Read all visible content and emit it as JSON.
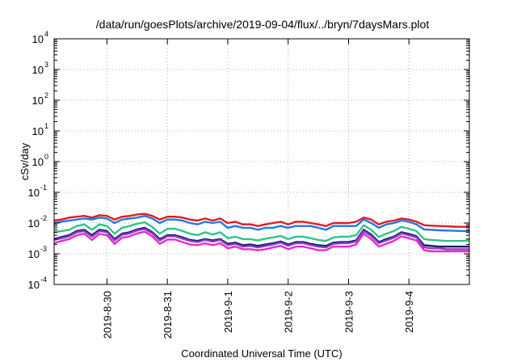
{
  "chart_data": {
    "type": "line",
    "title": "/data/run/goesPlots/archive/2019-09-04/flux/../bryn/7daysMars.plot",
    "xlabel": "Coordinated Universal Time (UTC)",
    "ylabel": "cSv/day",
    "y_scale": "log",
    "ylim": [
      0.0001,
      10000
    ],
    "y_ticks": [
      {
        "base": "10",
        "exp": "4"
      },
      {
        "base": "10",
        "exp": "3"
      },
      {
        "base": "10",
        "exp": "2"
      },
      {
        "base": "10",
        "exp": "1"
      },
      {
        "base": "10",
        "exp": "0"
      },
      {
        "base": "10",
        "exp": "-1"
      },
      {
        "base": "10",
        "exp": "-2"
      },
      {
        "base": "10",
        "exp": "-3"
      },
      {
        "base": "10",
        "exp": "-4"
      }
    ],
    "xlim": [
      "2019-08-29 03:00",
      "2019-09-05 00:00"
    ],
    "x_ticks": [
      "2019-8-30",
      "2019-8-31",
      "2019-9-1",
      "2019-9-2",
      "2019-9-3",
      "2019-9-4"
    ],
    "grid": true,
    "legend": "none",
    "x": [
      "2019-08-29 03:00",
      "2019-08-29 06:00",
      "2019-08-29 09:00",
      "2019-08-29 12:00",
      "2019-08-29 15:00",
      "2019-08-29 18:00",
      "2019-08-29 21:00",
      "2019-08-30 00:00",
      "2019-08-30 03:00",
      "2019-08-30 06:00",
      "2019-08-30 09:00",
      "2019-08-30 12:00",
      "2019-08-30 15:00",
      "2019-08-30 18:00",
      "2019-08-30 21:00",
      "2019-08-31 00:00",
      "2019-08-31 03:00",
      "2019-08-31 06:00",
      "2019-08-31 09:00",
      "2019-08-31 12:00",
      "2019-08-31 15:00",
      "2019-08-31 18:00",
      "2019-08-31 21:00",
      "2019-09-01 00:00",
      "2019-09-01 03:00",
      "2019-09-01 06:00",
      "2019-09-01 09:00",
      "2019-09-01 12:00",
      "2019-09-01 15:00",
      "2019-09-01 18:00",
      "2019-09-01 21:00",
      "2019-09-02 00:00",
      "2019-09-02 03:00",
      "2019-09-02 06:00",
      "2019-09-02 09:00",
      "2019-09-02 12:00",
      "2019-09-02 15:00",
      "2019-09-02 18:00",
      "2019-09-02 21:00",
      "2019-09-03 00:00",
      "2019-09-03 03:00",
      "2019-09-03 06:00",
      "2019-09-03 09:00",
      "2019-09-03 12:00",
      "2019-09-03 15:00",
      "2019-09-03 18:00",
      "2019-09-03 21:00",
      "2019-09-04 00:00",
      "2019-09-04 03:00",
      "2019-09-04 06:00",
      "2019-09-04 09:00",
      "2019-09-04 12:00",
      "2019-09-04 15:00",
      "2019-09-04 18:00",
      "2019-09-04 21:00",
      "2019-09-05 00:00"
    ],
    "series": [
      {
        "color": "#e41a1c",
        "values": [
          0.012,
          0.013,
          0.015,
          0.016,
          0.017,
          0.015,
          0.018,
          0.017,
          0.013,
          0.016,
          0.017,
          0.019,
          0.02,
          0.017,
          0.013,
          0.016,
          0.016,
          0.015,
          0.013,
          0.012,
          0.014,
          0.012,
          0.014,
          0.01,
          0.011,
          0.009,
          0.009,
          0.008,
          0.009,
          0.01,
          0.011,
          0.009,
          0.011,
          0.011,
          0.01,
          0.009,
          0.008,
          0.01,
          0.01,
          0.01,
          0.011,
          0.015,
          0.013,
          0.009,
          0.011,
          0.012,
          0.014,
          0.013,
          0.011,
          0.0085,
          0.0082,
          0.008,
          0.0078,
          0.0076,
          0.0075,
          0.0075
        ]
      },
      {
        "color": "#1f78e8",
        "values": [
          0.01,
          0.011,
          0.012,
          0.013,
          0.014,
          0.013,
          0.015,
          0.014,
          0.01,
          0.013,
          0.014,
          0.015,
          0.017,
          0.014,
          0.01,
          0.013,
          0.013,
          0.012,
          0.01,
          0.009,
          0.011,
          0.01,
          0.011,
          0.007,
          0.008,
          0.007,
          0.007,
          0.006,
          0.007,
          0.007,
          0.008,
          0.007,
          0.008,
          0.008,
          0.008,
          0.007,
          0.006,
          0.008,
          0.008,
          0.008,
          0.008,
          0.013,
          0.01,
          0.007,
          0.009,
          0.01,
          0.012,
          0.011,
          0.009,
          0.0062,
          0.006,
          0.0058,
          0.0057,
          0.0056,
          0.0055,
          0.0055
        ]
      },
      {
        "color": "#2ec48a",
        "values": [
          0.005,
          0.0055,
          0.006,
          0.008,
          0.009,
          0.006,
          0.009,
          0.008,
          0.0045,
          0.007,
          0.008,
          0.0095,
          0.0105,
          0.0075,
          0.0045,
          0.0065,
          0.0065,
          0.0055,
          0.0045,
          0.004,
          0.005,
          0.0042,
          0.005,
          0.0032,
          0.0036,
          0.003,
          0.003,
          0.0027,
          0.0031,
          0.0034,
          0.0038,
          0.003,
          0.0036,
          0.0036,
          0.0032,
          0.0028,
          0.0026,
          0.0034,
          0.0036,
          0.0036,
          0.004,
          0.0085,
          0.006,
          0.0035,
          0.0045,
          0.0055,
          0.0075,
          0.0065,
          0.0055,
          0.003,
          0.0028,
          0.0027,
          0.0026,
          0.0026,
          0.0026,
          0.0027
        ]
      },
      {
        "color": "#1a1a5e",
        "values": [
          0.003,
          0.0035,
          0.004,
          0.0055,
          0.006,
          0.004,
          0.006,
          0.0055,
          0.003,
          0.0045,
          0.005,
          0.0062,
          0.007,
          0.005,
          0.003,
          0.004,
          0.004,
          0.0034,
          0.0028,
          0.0026,
          0.003,
          0.0027,
          0.003,
          0.0021,
          0.0023,
          0.0019,
          0.002,
          0.0018,
          0.002,
          0.0022,
          0.0025,
          0.002,
          0.0024,
          0.0024,
          0.0021,
          0.0019,
          0.0018,
          0.0023,
          0.0024,
          0.0024,
          0.0027,
          0.006,
          0.0042,
          0.0024,
          0.003,
          0.0036,
          0.005,
          0.0044,
          0.0037,
          0.0019,
          0.0018,
          0.0017,
          0.0017,
          0.0017,
          0.0017,
          0.0017
        ]
      },
      {
        "color": "#8a3fcf",
        "values": [
          0.0028,
          0.0032,
          0.0037,
          0.005,
          0.0055,
          0.0036,
          0.0055,
          0.005,
          0.0027,
          0.0041,
          0.0046,
          0.0057,
          0.0064,
          0.0046,
          0.0027,
          0.0037,
          0.0037,
          0.0031,
          0.0026,
          0.0024,
          0.0028,
          0.0025,
          0.0028,
          0.0019,
          0.0021,
          0.0017,
          0.0018,
          0.0016,
          0.0018,
          0.002,
          0.0023,
          0.0018,
          0.0022,
          0.0022,
          0.0019,
          0.0017,
          0.0016,
          0.0021,
          0.0022,
          0.0022,
          0.0025,
          0.0055,
          0.0038,
          0.0022,
          0.0027,
          0.0033,
          0.0046,
          0.004,
          0.0034,
          0.0016,
          0.0015,
          0.0015,
          0.0014,
          0.0014,
          0.0014,
          0.0014
        ]
      },
      {
        "color": "#e82cc4",
        "values": [
          0.0022,
          0.0026,
          0.003,
          0.004,
          0.0045,
          0.0028,
          0.0044,
          0.004,
          0.0021,
          0.0033,
          0.0037,
          0.0046,
          0.0052,
          0.0037,
          0.0021,
          0.0029,
          0.0029,
          0.0024,
          0.002,
          0.0019,
          0.0022,
          0.0019,
          0.0022,
          0.0015,
          0.0017,
          0.0014,
          0.0014,
          0.0013,
          0.0014,
          0.0016,
          0.0018,
          0.0014,
          0.0017,
          0.0017,
          0.0015,
          0.0013,
          0.0013,
          0.0017,
          0.0017,
          0.0017,
          0.002,
          0.0045,
          0.003,
          0.0017,
          0.0021,
          0.0026,
          0.0037,
          0.0032,
          0.0027,
          0.0013,
          0.0012,
          0.0012,
          0.0012,
          0.0012,
          0.0012,
          0.0012
        ]
      }
    ]
  }
}
